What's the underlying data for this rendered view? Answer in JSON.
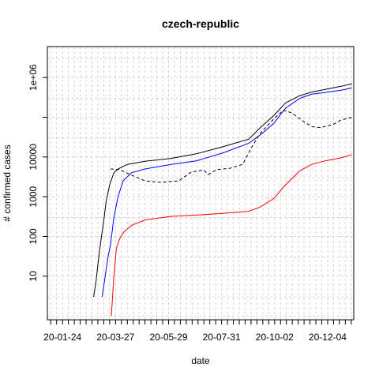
{
  "chart_data": {
    "type": "line",
    "title": "czech-republic",
    "xlabel": "date",
    "ylabel": "# confirmed cases",
    "y_scale": "log",
    "grid": true,
    "xlim": [
      "2020-01-06",
      "2021-01-04"
    ],
    "ylim": [
      0.8,
      6000000
    ],
    "x_tick_labels": [
      "20-01-24",
      "20-03-27",
      "20-05-29",
      "20-07-31",
      "20-10-02",
      "20-12-04"
    ],
    "y_tick_labels": [
      "10",
      "100",
      "1000",
      "10000",
      "1e+06"
    ],
    "colors": {
      "black": "#000000",
      "blue": "#0000ff",
      "red": "#ff0000",
      "dashed": "#000000",
      "grid": "#d3d3d3"
    },
    "series": [
      {
        "color": "black",
        "style": "solid",
        "points": [
          [
            "2020-03-01",
            3
          ],
          [
            "2020-03-04",
            8
          ],
          [
            "2020-03-07",
            30
          ],
          [
            "2020-03-10",
            90
          ],
          [
            "2020-03-13",
            250
          ],
          [
            "2020-03-16",
            800
          ],
          [
            "2020-03-20",
            2000
          ],
          [
            "2020-03-25",
            4000
          ],
          [
            "2020-03-30",
            5000
          ],
          [
            "2020-04-10",
            6500
          ],
          [
            "2020-05-01",
            7800
          ],
          [
            "2020-06-01",
            9200
          ],
          [
            "2020-07-01",
            12000
          ],
          [
            "2020-08-01",
            18000
          ],
          [
            "2020-09-01",
            28000
          ],
          [
            "2020-09-15",
            55000
          ],
          [
            "2020-10-01",
            110000
          ],
          [
            "2020-10-15",
            230000
          ],
          [
            "2020-11-01",
            350000
          ],
          [
            "2020-11-15",
            430000
          ],
          [
            "2020-12-01",
            500000
          ],
          [
            "2020-12-20",
            600000
          ],
          [
            "2021-01-02",
            700000
          ]
        ]
      },
      {
        "color": "blue",
        "style": "solid",
        "points": [
          [
            "2020-03-11",
            3
          ],
          [
            "2020-03-14",
            8
          ],
          [
            "2020-03-18",
            30
          ],
          [
            "2020-03-21",
            60
          ],
          [
            "2020-03-25",
            300
          ],
          [
            "2020-03-30",
            1000
          ],
          [
            "2020-04-05",
            2500
          ],
          [
            "2020-04-15",
            4000
          ],
          [
            "2020-05-01",
            5000
          ],
          [
            "2020-06-01",
            6500
          ],
          [
            "2020-07-01",
            8000
          ],
          [
            "2020-08-01",
            12500
          ],
          [
            "2020-09-01",
            22000
          ],
          [
            "2020-09-15",
            36000
          ],
          [
            "2020-10-01",
            70000
          ],
          [
            "2020-10-15",
            170000
          ],
          [
            "2020-11-01",
            300000
          ],
          [
            "2020-11-15",
            380000
          ],
          [
            "2020-12-01",
            420000
          ],
          [
            "2020-12-20",
            480000
          ],
          [
            "2021-01-02",
            550000
          ]
        ]
      },
      {
        "color": "red",
        "style": "solid",
        "points": [
          [
            "2020-03-22",
            1
          ],
          [
            "2020-03-25",
            10
          ],
          [
            "2020-03-28",
            50
          ],
          [
            "2020-04-01",
            90
          ],
          [
            "2020-04-06",
            130
          ],
          [
            "2020-04-15",
            190
          ],
          [
            "2020-05-01",
            260
          ],
          [
            "2020-06-01",
            320
          ],
          [
            "2020-07-01",
            345
          ],
          [
            "2020-08-01",
            380
          ],
          [
            "2020-09-01",
            430
          ],
          [
            "2020-09-15",
            550
          ],
          [
            "2020-10-01",
            900
          ],
          [
            "2020-10-15",
            2000
          ],
          [
            "2020-11-01",
            4500
          ],
          [
            "2020-11-15",
            6500
          ],
          [
            "2020-12-01",
            8000
          ],
          [
            "2020-12-20",
            9500
          ],
          [
            "2021-01-02",
            11500
          ]
        ]
      },
      {
        "color": "dashed",
        "style": "dashed",
        "points": [
          [
            "2020-03-21",
            5000
          ],
          [
            "2020-04-01",
            4800
          ],
          [
            "2020-04-15",
            3500
          ],
          [
            "2020-05-01",
            2500
          ],
          [
            "2020-05-20",
            2300
          ],
          [
            "2020-06-10",
            2500
          ],
          [
            "2020-06-25",
            4200
          ],
          [
            "2020-07-10",
            4700
          ],
          [
            "2020-07-15",
            3600
          ],
          [
            "2020-07-25",
            4800
          ],
          [
            "2020-08-10",
            5200
          ],
          [
            "2020-08-25",
            6500
          ],
          [
            "2020-09-05",
            18000
          ],
          [
            "2020-09-15",
            40000
          ],
          [
            "2020-10-01",
            90000
          ],
          [
            "2020-10-12",
            150000
          ],
          [
            "2020-10-22",
            130000
          ],
          [
            "2020-11-05",
            80000
          ],
          [
            "2020-11-15",
            58000
          ],
          [
            "2020-11-25",
            55000
          ],
          [
            "2020-12-10",
            65000
          ],
          [
            "2020-12-20",
            85000
          ],
          [
            "2021-01-02",
            100000
          ]
        ]
      }
    ]
  }
}
